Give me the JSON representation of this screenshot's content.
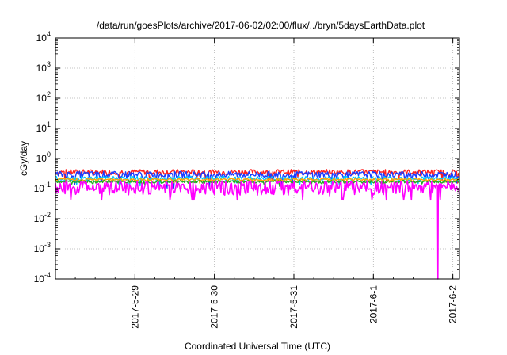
{
  "chart_data": {
    "type": "line",
    "title": "/data/run/goesPlots/archive/2017-06-02/02:00/flux/../bryn/5daysEarthData.plot",
    "xlabel": "Coordinated Universal Time (UTC)",
    "ylabel": "cGy/day",
    "yscale": "log",
    "ylim": [
      0.0001,
      10000
    ],
    "xlim": [
      "2017-05-28 00:00",
      "2017-06-02 02:00"
    ],
    "grid": true,
    "legend": "none",
    "y_ticks": [
      {
        "value": 0.0001,
        "base": "10",
        "exp": "-4"
      },
      {
        "value": 0.001,
        "base": "10",
        "exp": "-3"
      },
      {
        "value": 0.01,
        "base": "10",
        "exp": "-2"
      },
      {
        "value": 0.1,
        "base": "10",
        "exp": "-1"
      },
      {
        "value": 1,
        "base": "10",
        "exp": "0"
      },
      {
        "value": 10,
        "base": "10",
        "exp": "1"
      },
      {
        "value": 100,
        "base": "10",
        "exp": "2"
      },
      {
        "value": 1000,
        "base": "10",
        "exp": "3"
      },
      {
        "value": 10000,
        "base": "10",
        "exp": "4"
      }
    ],
    "x_ticks": [
      "2017-5-29",
      "2017-5-30",
      "2017-5-31",
      "2017-6-1",
      "2017-6-2"
    ],
    "series": [
      {
        "color": "#ff2020",
        "typical": 0.36,
        "spread": 0.12
      },
      {
        "color": "#1a3cff",
        "typical": 0.3,
        "spread": 0.12
      },
      {
        "color": "#00c8ff",
        "typical": 0.22,
        "spread": 0.06
      },
      {
        "color": "#ffa500",
        "typical": 0.2,
        "spread": 0.03
      },
      {
        "color": "#22aa22",
        "typical": 0.17,
        "spread": 0.03
      },
      {
        "color": "#ff00ff",
        "typical": 0.12,
        "spread": 0.1,
        "min_drop": {
          "time": "2017-06-01 19:30",
          "value": 0.0001
        }
      }
    ]
  }
}
